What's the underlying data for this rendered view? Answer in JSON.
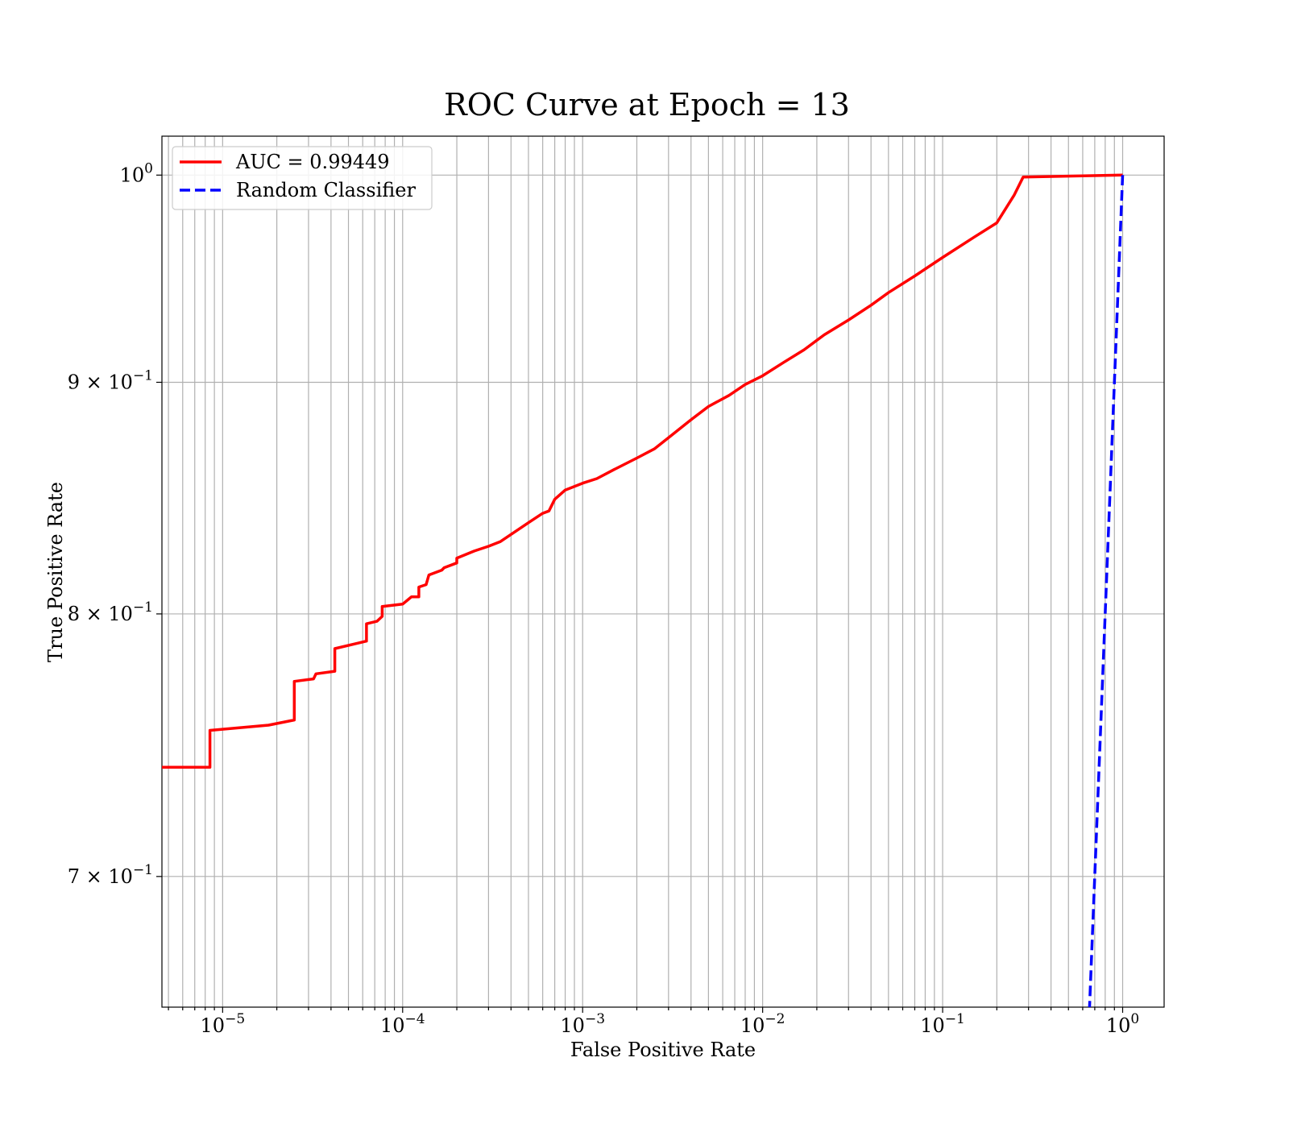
{
  "chart_data": {
    "type": "line",
    "title": "ROC Curve at Epoch = 13",
    "xlabel": "False Positive Rate",
    "ylabel": "True Positive Rate",
    "xscale": "log",
    "yscale": "log",
    "xlim": [
      4.6e-06,
      1.7
    ],
    "ylim": [
      0.655,
      1.02
    ],
    "grid": true,
    "legend_position": "top-left",
    "x_ticks": [
      {
        "base": "10",
        "exp": "−5",
        "value": 1e-05
      },
      {
        "base": "10",
        "exp": "−4",
        "value": 0.0001
      },
      {
        "base": "10",
        "exp": "−3",
        "value": 0.001
      },
      {
        "base": "10",
        "exp": "−2",
        "value": 0.01
      },
      {
        "base": "10",
        "exp": "−1",
        "value": 0.1
      },
      {
        "base": "10",
        "exp": "0",
        "value": 1
      }
    ],
    "y_ticks": [
      {
        "mantissa": "",
        "base": "10",
        "exp": "0",
        "value": 1.0
      },
      {
        "mantissa": "9 × ",
        "base": "10",
        "exp": "−1",
        "value": 0.9
      },
      {
        "mantissa": "8 × ",
        "base": "10",
        "exp": "−1",
        "value": 0.8
      },
      {
        "mantissa": "7 × ",
        "base": "10",
        "exp": "−1",
        "value": 0.7
      }
    ],
    "series": [
      {
        "name": "AUC = 0.99449",
        "color": "#ff0000",
        "style": "solid",
        "points": [
          [
            4.6e-06,
            0.74
          ],
          [
            8.5e-06,
            0.74
          ],
          [
            8.5e-06,
            0.754
          ],
          [
            1.8e-05,
            0.756
          ],
          [
            2.5e-05,
            0.758
          ],
          [
            2.5e-05,
            0.773
          ],
          [
            3.2e-05,
            0.774
          ],
          [
            3.3e-05,
            0.776
          ],
          [
            4.2e-05,
            0.777
          ],
          [
            4.2e-05,
            0.786
          ],
          [
            5.5e-05,
            0.788
          ],
          [
            6.3e-05,
            0.789
          ],
          [
            6.3e-05,
            0.796
          ],
          [
            7.2e-05,
            0.797
          ],
          [
            7.7e-05,
            0.799
          ],
          [
            7.7e-05,
            0.803
          ],
          [
            0.0001,
            0.804
          ],
          [
            0.000112,
            0.807
          ],
          [
            0.000123,
            0.807
          ],
          [
            0.000123,
            0.811
          ],
          [
            0.000135,
            0.812
          ],
          [
            0.00014,
            0.816
          ],
          [
            0.000165,
            0.818
          ],
          [
            0.00017,
            0.819
          ],
          [
            0.0002,
            0.821
          ],
          [
            0.0002,
            0.823
          ],
          [
            0.00025,
            0.826
          ],
          [
            0.0003,
            0.828
          ],
          [
            0.00035,
            0.83
          ],
          [
            0.0004,
            0.833
          ],
          [
            0.0005,
            0.838
          ],
          [
            0.0006,
            0.842
          ],
          [
            0.00065,
            0.843
          ],
          [
            0.0007,
            0.848
          ],
          [
            0.0008,
            0.852
          ],
          [
            0.001,
            0.855
          ],
          [
            0.0012,
            0.857
          ],
          [
            0.0015,
            0.861
          ],
          [
            0.002,
            0.866
          ],
          [
            0.0025,
            0.87
          ],
          [
            0.003,
            0.875
          ],
          [
            0.004,
            0.883
          ],
          [
            0.005,
            0.889
          ],
          [
            0.0065,
            0.894
          ],
          [
            0.008,
            0.899
          ],
          [
            0.01,
            0.903
          ],
          [
            0.013,
            0.909
          ],
          [
            0.017,
            0.915
          ],
          [
            0.022,
            0.922
          ],
          [
            0.03,
            0.929
          ],
          [
            0.04,
            0.936
          ],
          [
            0.05,
            0.942
          ],
          [
            0.07,
            0.95
          ],
          [
            0.1,
            0.959
          ],
          [
            0.15,
            0.969
          ],
          [
            0.2,
            0.976
          ],
          [
            0.25,
            0.99
          ],
          [
            0.28,
            0.999
          ],
          [
            1.0,
            1.0
          ]
        ]
      },
      {
        "name": "Random Classifier",
        "color": "#0000ff",
        "style": "dashed",
        "points": [
          [
            0.6,
            0.6
          ],
          [
            1.0,
            1.0
          ]
        ]
      }
    ]
  }
}
